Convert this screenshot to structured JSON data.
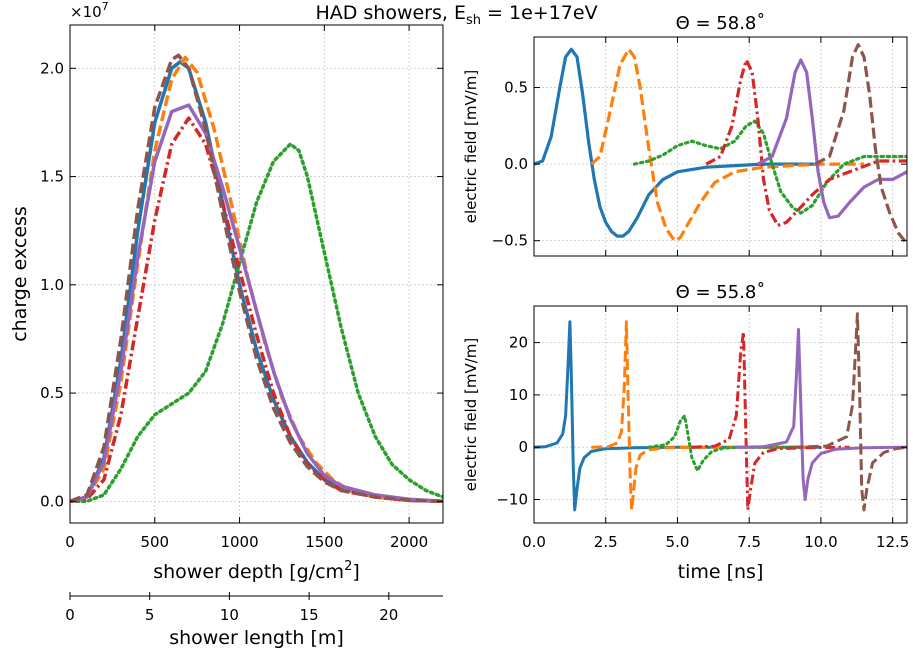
{
  "figure": {
    "title_main": "HAD showers, E",
    "title_sub": "sh",
    "title_tail": " = 1e+17eV"
  },
  "colors": {
    "s1": "#1f77b4",
    "s2": "#ff7f0e",
    "s3": "#2ca02c",
    "s4": "#d62728",
    "s5": "#9467bd",
    "s6": "#8c564b",
    "grid": "#c8c8c8"
  },
  "chart_data": [
    {
      "type": "line",
      "id": "charge",
      "title": "",
      "xlabel": "shower depth [g/cm",
      "xlabel_sup": "2",
      "xlabel_tail": "]",
      "ylabel": "charge excess",
      "y_multiplier_label": "×10",
      "y_multiplier_exp": "7",
      "xlim": [
        0,
        2200
      ],
      "ylim": [
        -0.1,
        2.2
      ],
      "grid": true,
      "xticks": [
        0,
        500,
        1000,
        1500,
        2000
      ],
      "xtick_labels": [
        "0",
        "500",
        "1000",
        "1500",
        "2000"
      ],
      "yticks": [
        0.0,
        0.5,
        1.0,
        1.5,
        2.0
      ],
      "ytick_labels": [
        "0.0",
        "0.5",
        "1.0",
        "1.5",
        "2.0"
      ],
      "secondary_axis": {
        "label": "shower length [m]",
        "ticks": [
          0,
          5,
          10,
          15,
          20
        ],
        "tick_labels": [
          "0",
          "5",
          "10",
          "15",
          "20"
        ],
        "xlim": [
          0,
          23.4
        ]
      },
      "series": [
        {
          "style": "solid",
          "color_key": "s1",
          "x": [
            0,
            100,
            200,
            300,
            400,
            500,
            600,
            650,
            700,
            800,
            900,
            1000,
            1100,
            1200,
            1300,
            1400,
            1500,
            1600,
            1800,
            2000,
            2200
          ],
          "y": [
            0,
            0.02,
            0.2,
            0.65,
            1.25,
            1.75,
            2.0,
            2.03,
            2.0,
            1.75,
            1.38,
            1.0,
            0.7,
            0.47,
            0.3,
            0.18,
            0.1,
            0.06,
            0.02,
            0.005,
            0
          ]
        },
        {
          "style": "dashed",
          "color_key": "s2",
          "x": [
            0,
            100,
            200,
            300,
            400,
            500,
            600,
            680,
            750,
            850,
            950,
            1050,
            1150,
            1250,
            1350,
            1450,
            1550,
            1650,
            1800,
            2000,
            2200
          ],
          "y": [
            0,
            0.02,
            0.15,
            0.55,
            1.1,
            1.62,
            1.95,
            2.05,
            1.98,
            1.72,
            1.38,
            1.03,
            0.73,
            0.48,
            0.3,
            0.18,
            0.1,
            0.05,
            0.02,
            0.005,
            0
          ]
        },
        {
          "style": "dotted",
          "color_key": "s3",
          "x": [
            0,
            100,
            200,
            300,
            400,
            500,
            600,
            700,
            800,
            900,
            1000,
            1100,
            1200,
            1300,
            1350,
            1400,
            1500,
            1600,
            1700,
            1800,
            1900,
            2000,
            2100,
            2200
          ],
          "y": [
            0,
            0,
            0.03,
            0.15,
            0.3,
            0.4,
            0.45,
            0.5,
            0.6,
            0.82,
            1.1,
            1.38,
            1.57,
            1.65,
            1.62,
            1.5,
            1.15,
            0.8,
            0.5,
            0.3,
            0.17,
            0.1,
            0.05,
            0.02
          ]
        },
        {
          "style": "dashdot",
          "color_key": "s4",
          "x": [
            0,
            100,
            200,
            300,
            400,
            500,
            600,
            700,
            800,
            900,
            1000,
            1100,
            1200,
            1300,
            1400,
            1500,
            1600,
            1800,
            2000,
            2200
          ],
          "y": [
            0,
            0.01,
            0.1,
            0.4,
            0.85,
            1.3,
            1.65,
            1.77,
            1.65,
            1.38,
            1.07,
            0.77,
            0.5,
            0.3,
            0.17,
            0.1,
            0.05,
            0.02,
            0.005,
            0
          ]
        },
        {
          "style": "solid",
          "color_key": "s5",
          "x": [
            0,
            100,
            200,
            300,
            400,
            500,
            600,
            700,
            800,
            900,
            1000,
            1100,
            1200,
            1300,
            1400,
            1500,
            1600,
            1800,
            2000,
            2200
          ],
          "y": [
            0,
            0.02,
            0.18,
            0.6,
            1.13,
            1.57,
            1.8,
            1.83,
            1.7,
            1.45,
            1.17,
            0.88,
            0.6,
            0.38,
            0.22,
            0.12,
            0.07,
            0.03,
            0.01,
            0
          ]
        },
        {
          "style": "dashed",
          "color_key": "s6",
          "x": [
            0,
            100,
            200,
            300,
            400,
            500,
            600,
            640,
            700,
            800,
            900,
            1000,
            1100,
            1200,
            1300,
            1400,
            1500,
            1600,
            1800,
            2000,
            2200
          ],
          "y": [
            0,
            0.03,
            0.25,
            0.75,
            1.35,
            1.82,
            2.04,
            2.06,
            2.0,
            1.72,
            1.33,
            0.97,
            0.66,
            0.43,
            0.27,
            0.16,
            0.09,
            0.05,
            0.02,
            0.005,
            0
          ]
        }
      ]
    },
    {
      "type": "line",
      "id": "field_top",
      "title": "Θ = 58.8˚",
      "xlabel": "",
      "ylabel": "electric field [mV/m]",
      "xlim": [
        0,
        13
      ],
      "ylim": [
        -0.6,
        0.83
      ],
      "grid": true,
      "xticks": [
        0,
        2.5,
        5,
        7.5,
        10,
        12.5
      ],
      "xtick_labels": [],
      "yticks": [
        -0.5,
        0.0,
        0.5
      ],
      "ytick_labels": [
        "−0.5",
        "0.0",
        "0.5"
      ],
      "series": [
        {
          "style": "solid",
          "color_key": "s1",
          "x": [
            0,
            0.3,
            0.6,
            0.9,
            1.1,
            1.3,
            1.5,
            1.7,
            1.9,
            2.1,
            2.3,
            2.5,
            2.7,
            2.9,
            3.1,
            3.3,
            3.6,
            4.0,
            4.5,
            5.0,
            6.0,
            7.0,
            8.0,
            9.0,
            10.0
          ],
          "y": [
            0,
            0.02,
            0.18,
            0.5,
            0.7,
            0.75,
            0.7,
            0.45,
            0.15,
            -0.1,
            -0.28,
            -0.38,
            -0.44,
            -0.47,
            -0.47,
            -0.44,
            -0.35,
            -0.2,
            -0.1,
            -0.05,
            -0.02,
            -0.01,
            0,
            0,
            0
          ]
        },
        {
          "style": "dashed",
          "color_key": "s2",
          "x": [
            2.0,
            2.3,
            2.6,
            3.0,
            3.3,
            3.5,
            3.7,
            4.0,
            4.3,
            4.6,
            4.9,
            5.1,
            5.4,
            5.8,
            6.3,
            7.0,
            8.0,
            9.0,
            10.0,
            11.0,
            11.5
          ],
          "y": [
            0,
            0.05,
            0.3,
            0.65,
            0.75,
            0.7,
            0.5,
            0.1,
            -0.25,
            -0.42,
            -0.5,
            -0.48,
            -0.38,
            -0.25,
            -0.12,
            -0.05,
            -0.02,
            -0.01,
            0,
            0,
            0
          ]
        },
        {
          "style": "dotted",
          "color_key": "s3",
          "x": [
            3.5,
            4.0,
            4.5,
            5.0,
            5.5,
            6.0,
            6.5,
            7.0,
            7.4,
            7.7,
            8.0,
            8.3,
            8.6,
            9.0,
            9.3,
            9.7,
            10.2,
            10.8,
            11.5,
            12.2,
            13.0
          ],
          "y": [
            0,
            0.02,
            0.06,
            0.12,
            0.15,
            0.12,
            0.1,
            0.15,
            0.25,
            0.28,
            0.2,
            0.0,
            -0.18,
            -0.28,
            -0.32,
            -0.27,
            -0.12,
            0.0,
            0.05,
            0.05,
            0.05
          ]
        },
        {
          "style": "dashdot",
          "color_key": "s4",
          "x": [
            6.0,
            6.5,
            6.9,
            7.2,
            7.4,
            7.6,
            7.8,
            8.0,
            8.2,
            8.5,
            8.8,
            9.2,
            9.7,
            10.3,
            11.0,
            12.0,
            13.0
          ],
          "y": [
            0,
            0.05,
            0.25,
            0.55,
            0.68,
            0.6,
            0.3,
            -0.1,
            -0.3,
            -0.4,
            -0.38,
            -0.3,
            -0.2,
            -0.1,
            -0.05,
            0.02,
            0.02
          ]
        },
        {
          "style": "solid",
          "color_key": "s5",
          "x": [
            7.8,
            8.3,
            8.8,
            9.1,
            9.3,
            9.5,
            9.7,
            9.9,
            10.1,
            10.3,
            10.6,
            11.0,
            11.5,
            12.0,
            12.5,
            13.0
          ],
          "y": [
            0,
            0.05,
            0.3,
            0.6,
            0.68,
            0.6,
            0.3,
            -0.05,
            -0.25,
            -0.35,
            -0.34,
            -0.25,
            -0.15,
            -0.1,
            -0.1,
            -0.05
          ]
        },
        {
          "style": "dashed",
          "color_key": "s6",
          "x": [
            9.8,
            10.3,
            10.8,
            11.1,
            11.3,
            11.5,
            11.7,
            11.9,
            12.1,
            12.4,
            12.7,
            13.0
          ],
          "y": [
            0,
            0.05,
            0.35,
            0.7,
            0.78,
            0.7,
            0.45,
            0.1,
            -0.15,
            -0.32,
            -0.45,
            -0.52
          ]
        }
      ]
    },
    {
      "type": "line",
      "id": "field_bottom",
      "title": "Θ = 55.8˚",
      "xlabel": "time [ns]",
      "ylabel": "electric field [mV/m]",
      "xlim": [
        0,
        13
      ],
      "ylim": [
        -14.5,
        27
      ],
      "grid": true,
      "xticks": [
        0,
        2.5,
        5,
        7.5,
        10,
        12.5
      ],
      "xtick_labels": [
        "0.0",
        "2.5",
        "5.0",
        "7.5",
        "10.0",
        "12.5"
      ],
      "yticks": [
        -10,
        0,
        10,
        20
      ],
      "ytick_labels": [
        "−10",
        "0",
        "10",
        "20"
      ],
      "series": [
        {
          "style": "solid",
          "color_key": "s1",
          "x": [
            0,
            0.4,
            0.8,
            1.0,
            1.1,
            1.18,
            1.25,
            1.3,
            1.37,
            1.42,
            1.5,
            1.6,
            1.75,
            2.0,
            2.5,
            3.5,
            5.0,
            7.0,
            10.0
          ],
          "y": [
            0,
            0.1,
            0.8,
            2.5,
            6,
            15,
            24,
            14,
            -4,
            -12,
            -8,
            -4,
            -2,
            -0.8,
            -0.3,
            -0.1,
            0,
            0,
            0
          ]
        },
        {
          "style": "dashed",
          "color_key": "s2",
          "x": [
            2.0,
            2.6,
            2.9,
            3.05,
            3.15,
            3.22,
            3.28,
            3.35,
            3.4,
            3.46,
            3.55,
            3.7,
            4.0,
            4.6,
            6.0,
            8.0,
            10.0
          ],
          "y": [
            0,
            0.1,
            0.8,
            3,
            12,
            24,
            10,
            -5,
            -12,
            -9,
            -4,
            -1.5,
            -0.5,
            -0.1,
            0,
            0,
            0
          ]
        },
        {
          "style": "dotted",
          "color_key": "s3",
          "x": [
            4.0,
            4.6,
            4.9,
            5.1,
            5.25,
            5.35,
            5.5,
            5.7,
            5.9,
            6.2,
            6.6,
            7.2,
            8.0,
            9.0
          ],
          "y": [
            0,
            0.5,
            2,
            5,
            6,
            3,
            -2,
            -4.5,
            -2.5,
            -0.8,
            -0.2,
            0,
            0,
            0
          ]
        },
        {
          "style": "dashdot",
          "color_key": "s4",
          "x": [
            5.5,
            6.3,
            6.8,
            7.05,
            7.2,
            7.3,
            7.38,
            7.45,
            7.55,
            7.7,
            8.0,
            8.5,
            9.5,
            11.0
          ],
          "y": [
            0,
            0.2,
            1.5,
            6,
            18,
            22,
            4,
            -12,
            -8,
            -3,
            -1,
            -0.3,
            -0.1,
            0
          ]
        },
        {
          "style": "solid",
          "color_key": "s5",
          "x": [
            7.0,
            8.0,
            8.8,
            9.05,
            9.15,
            9.22,
            9.3,
            9.38,
            9.45,
            9.55,
            9.7,
            10.0,
            10.5,
            11.5,
            13.0
          ],
          "y": [
            0,
            0.1,
            1,
            4,
            14,
            22.5,
            8,
            -6,
            -10,
            -6,
            -3,
            -1.2,
            -0.4,
            -0.1,
            0
          ]
        },
        {
          "style": "dashed",
          "color_key": "s6",
          "x": [
            9.0,
            10.2,
            10.9,
            11.1,
            11.2,
            11.27,
            11.35,
            11.42,
            11.5,
            11.6,
            11.8,
            12.2,
            12.6,
            13.0
          ],
          "y": [
            0,
            0.2,
            2,
            8,
            18,
            25.5,
            10,
            -8,
            -12,
            -8,
            -3,
            -1,
            -0.3,
            0
          ]
        }
      ]
    }
  ]
}
